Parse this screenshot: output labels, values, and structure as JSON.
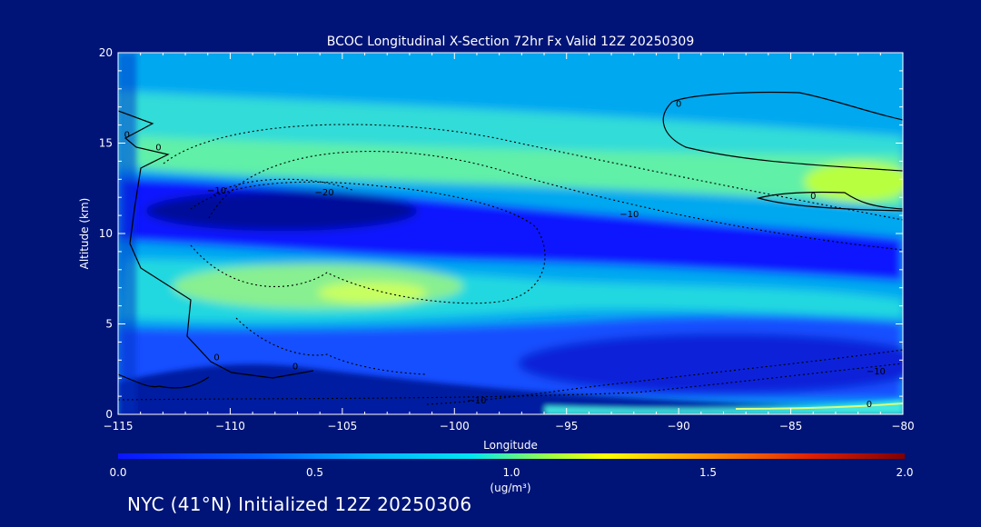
{
  "chart_data": {
    "type": "heatmap",
    "title": "BCOC Longitudinal X-Section 72hr  Fx Valid 12Z 20250309",
    "xlabel": "Longitude",
    "ylabel": "Altitude (km)",
    "xlim": [
      -115,
      -80
    ],
    "ylim": [
      0,
      20
    ],
    "x_ticks": [
      -115,
      -110,
      -105,
      -100,
      -95,
      -90,
      -85,
      -80
    ],
    "x_tick_labels": [
      "−115",
      "−110",
      "−105",
      "−100",
      "−95",
      "−90",
      "−85",
      "−80"
    ],
    "y_ticks": [
      0,
      5,
      10,
      15,
      20
    ],
    "y_tick_labels": [
      "0",
      "5",
      "10",
      "15",
      "20"
    ],
    "colorbar": {
      "min": 0.0,
      "max": 2.0,
      "ticks": [
        0.0,
        0.5,
        1.0,
        1.5,
        2.0
      ],
      "tick_labels": [
        "0.0",
        "0.5",
        "1.0",
        "1.5",
        "2.0"
      ],
      "unit_label": "(ug/m³)",
      "colors": [
        "#0a14ff",
        "#0090ff",
        "#00e6f0",
        "#a0ff40",
        "#ffff00",
        "#ff8000",
        "#d00000",
        "#800000"
      ]
    },
    "contour_labels": [
      {
        "text": "0",
        "lon": -114.6,
        "alt": 15.3
      },
      {
        "text": "0",
        "lon": -113.2,
        "alt": 14.6
      },
      {
        "text": "0",
        "lon": -90.0,
        "alt": 17.0
      },
      {
        "text": "0",
        "lon": -84.0,
        "alt": 11.9
      },
      {
        "text": "0",
        "lon": -110.6,
        "alt": 3.0
      },
      {
        "text": "0",
        "lon": -107.1,
        "alt": 2.5
      },
      {
        "text": "0",
        "lon": -81.5,
        "alt": 0.4
      },
      {
        "text": "−10",
        "lon": -110.6,
        "alt": 12.2
      },
      {
        "text": "−20",
        "lon": -105.8,
        "alt": 12.1
      },
      {
        "text": "−10",
        "lon": -92.2,
        "alt": 10.9
      },
      {
        "text": "−10",
        "lon": -81.2,
        "alt": 2.2
      },
      {
        "text": "−10",
        "lon": -99.0,
        "alt": 0.6
      }
    ]
  },
  "footer": {
    "station": "NYC (41°N) Initialized 12Z 20250306"
  },
  "colors": {
    "background": "#001478",
    "axis": "#ffffff"
  }
}
